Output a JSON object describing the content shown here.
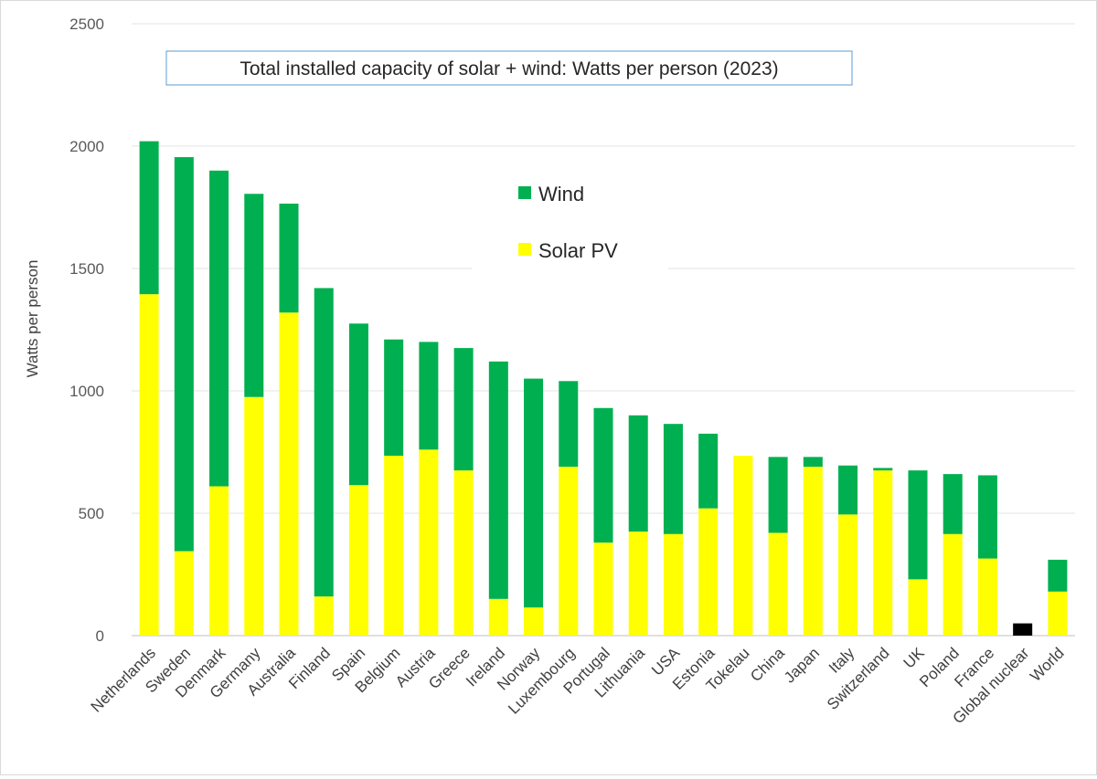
{
  "chart_data": {
    "type": "bar",
    "stacked": true,
    "title": "Total installed capacity of solar + wind: Watts per person (2023)",
    "xlabel": "",
    "ylabel": "Watts per person",
    "ylim": [
      0,
      2500
    ],
    "yticks": [
      0,
      500,
      1000,
      1500,
      2000,
      2500
    ],
    "grid": true,
    "legend_position": "top-center",
    "categories": [
      "Netherlands",
      "Sweden",
      "Denmark",
      "Germany",
      "Australia",
      "Finland",
      "Spain",
      "Belgium",
      "Austria",
      "Greece",
      "Ireland",
      "Norway",
      "Luxembourg",
      "Portugal",
      "Lithuania",
      "USA",
      "Estonia",
      "Tokelau",
      "China",
      "Japan",
      "Italy",
      "Switzerland",
      "UK",
      "Poland",
      "France",
      "Global nuclear",
      "World"
    ],
    "series": [
      {
        "name": "Solar PV",
        "color": "#ffff00",
        "values": [
          1395,
          345,
          610,
          975,
          1320,
          160,
          615,
          735,
          760,
          675,
          150,
          115,
          690,
          380,
          425,
          415,
          520,
          735,
          420,
          690,
          495,
          675,
          230,
          415,
          315,
          0,
          180
        ]
      },
      {
        "name": "Wind",
        "color": "#00b050",
        "values": [
          625,
          1610,
          1290,
          830,
          445,
          1260,
          660,
          475,
          440,
          500,
          970,
          935,
          350,
          550,
          475,
          450,
          305,
          0,
          310,
          40,
          200,
          10,
          445,
          245,
          340,
          0,
          130
        ]
      },
      {
        "color": "#000000",
        "values": [
          0,
          0,
          0,
          0,
          0,
          0,
          0,
          0,
          0,
          0,
          0,
          0,
          0,
          0,
          0,
          0,
          0,
          0,
          0,
          0,
          0,
          0,
          0,
          0,
          0,
          50,
          0
        ]
      }
    ],
    "legend": [
      {
        "label": "Wind",
        "color": "#00b050"
      },
      {
        "label": "Solar PV",
        "color": "#ffff00"
      }
    ]
  }
}
